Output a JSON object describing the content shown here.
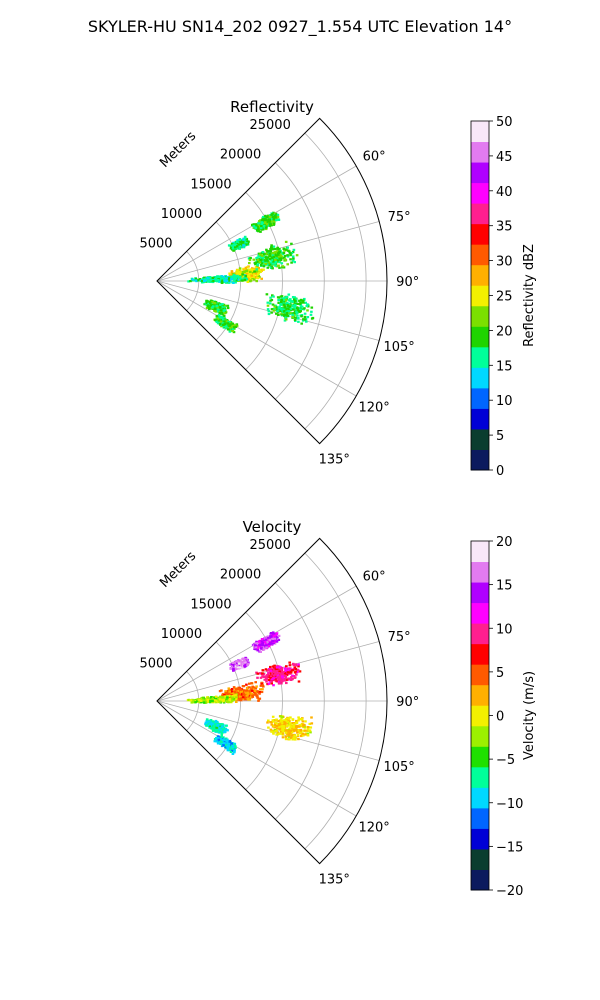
{
  "figure_title": "SKYLER-HU  SN14_202  0927_1.554 UTC Elevation 14°",
  "chart_data": [
    {
      "type": "polar-sector",
      "title": "Reflectivity",
      "radial_label": "Meters",
      "r_ticks": [
        "5000",
        "10000",
        "15000",
        "20000",
        "25000"
      ],
      "r_range": [
        0,
        27500
      ],
      "theta_ticks": [
        "60°",
        "75°",
        "90°",
        "105°",
        "120°",
        "135°"
      ],
      "theta_range_deg": [
        45,
        135
      ],
      "grid": true,
      "colorbar": {
        "label": "Reflectivity dBZ",
        "range": [
          0,
          50
        ],
        "ticks": [
          "0",
          "5",
          "10",
          "15",
          "20",
          "25",
          "30",
          "35",
          "40",
          "45",
          "50"
        ],
        "stops": [
          "#0b1a5e",
          "#0a3d2f",
          "#0000d6",
          "#0066ff",
          "#00d8ff",
          "#00ff9a",
          "#1fd400",
          "#7be000",
          "#f3f000",
          "#ffb000",
          "#ff5a00",
          "#ff0000",
          "#ff1f8f",
          "#ff00ff",
          "#b000ff",
          "#e27bf0",
          "#f8e8f8"
        ]
      },
      "echoes": [
        {
          "theta": [
            80,
            90
          ],
          "r": [
            8000,
            13000
          ],
          "value": 25
        },
        {
          "theta": [
            72,
            84
          ],
          "r": [
            11000,
            17000
          ],
          "value": 19
        },
        {
          "theta": [
            84,
            91
          ],
          "r": [
            3500,
            11000
          ],
          "value": 16
        },
        {
          "theta": [
            95,
            107
          ],
          "r": [
            13000,
            19000
          ],
          "value": 18
        },
        {
          "theta": [
            58,
            64
          ],
          "r": [
            13000,
            16500
          ],
          "value": 19
        },
        {
          "theta": [
            62,
            68
          ],
          "r": [
            9500,
            12000
          ],
          "value": 17
        },
        {
          "theta": [
            108,
            118
          ],
          "r": [
            6000,
            9000
          ],
          "value": 19
        },
        {
          "theta": [
            118,
            125
          ],
          "r": [
            8000,
            11000
          ],
          "value": 19
        }
      ]
    },
    {
      "type": "polar-sector",
      "title": "Velocity",
      "radial_label": "Meters",
      "r_ticks": [
        "5000",
        "10000",
        "15000",
        "20000",
        "25000"
      ],
      "r_range": [
        0,
        27500
      ],
      "theta_ticks": [
        "60°",
        "75°",
        "90°",
        "105°",
        "120°",
        "135°"
      ],
      "theta_range_deg": [
        45,
        135
      ],
      "grid": true,
      "colorbar": {
        "label": "Velocity (m/s)",
        "range": [
          -20,
          20
        ],
        "ticks": [
          "−20",
          "−15",
          "−10",
          "−5",
          "0",
          "5",
          "10",
          "15",
          "20"
        ],
        "stops": [
          "#0b1a5e",
          "#0a3d2f",
          "#0000d6",
          "#0066ff",
          "#00d8ff",
          "#00ff9a",
          "#1fe000",
          "#9cf000",
          "#f3f000",
          "#ffb000",
          "#ff5a00",
          "#ff0000",
          "#ff1f8f",
          "#ff00ff",
          "#b000ff",
          "#e27bf0",
          "#f8e8f8"
        ]
      },
      "echoes": [
        {
          "theta": [
            78,
            90
          ],
          "r": [
            7000,
            13000
          ],
          "value": 4
        },
        {
          "theta": [
            72,
            82
          ],
          "r": [
            12000,
            17500
          ],
          "value": 9
        },
        {
          "theta": [
            84,
            91
          ],
          "r": [
            3500,
            9500
          ],
          "value": -2
        },
        {
          "theta": [
            95,
            107
          ],
          "r": [
            13000,
            19000
          ],
          "value": 1
        },
        {
          "theta": [
            58,
            64
          ],
          "r": [
            13000,
            16500
          ],
          "value": 14
        },
        {
          "theta": [
            62,
            68
          ],
          "r": [
            9500,
            12000
          ],
          "value": 16
        },
        {
          "theta": [
            108,
            118
          ],
          "r": [
            6000,
            9000
          ],
          "value": -8
        },
        {
          "theta": [
            118,
            125
          ],
          "r": [
            8000,
            11000
          ],
          "value": -9
        }
      ]
    }
  ]
}
